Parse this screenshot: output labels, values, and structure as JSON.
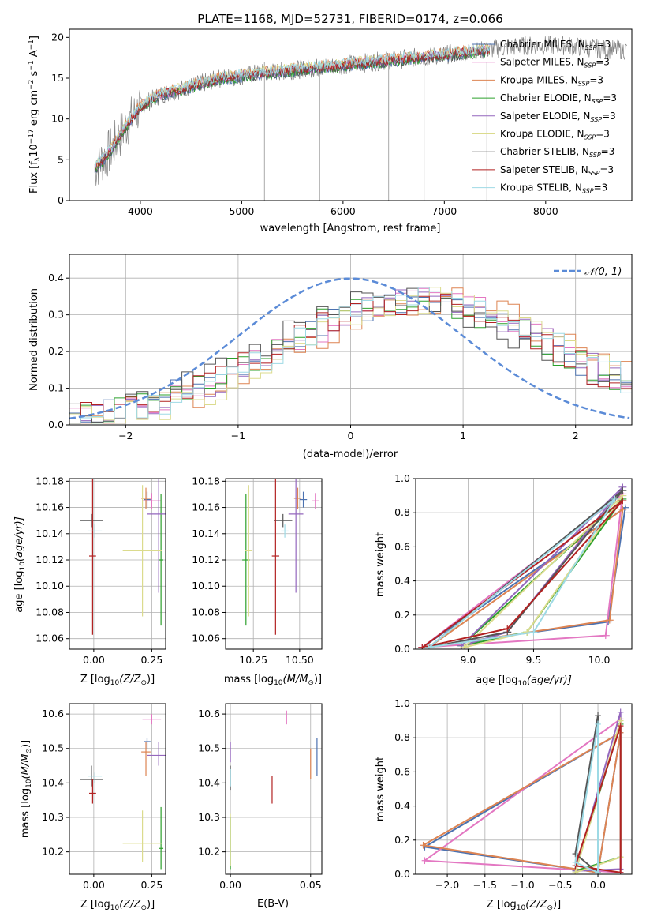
{
  "chart_data": [
    {
      "id": "spectrum",
      "type": "line",
      "title": "PLATE=1168, MJD=52731, FIBERID=0174, z=0.066",
      "xlabel": "wavelength [Angstrom, rest frame]",
      "ylabel": "Flux [f",
      "ylabel_sub": "λ",
      "ylabel_rest": "10",
      "ylabel_exp": "−17",
      "ylabel_units": " erg cm",
      "ylabel_exp2": "−2",
      "ylabel_s": " s",
      "ylabel_exp3": "−1",
      "ylabel_end": " A",
      "ylabel_exp4": "−1",
      "ylabel_close": "]",
      "xlim": [
        3300,
        8850
      ],
      "ylim": [
        0,
        21
      ],
      "xticks": [
        "4000",
        "5000",
        "6000",
        "7000",
        "8000"
      ],
      "yticks": [
        "0",
        "5",
        "10",
        "15",
        "20"
      ],
      "legend": [
        {
          "name": "Chabrier MILES",
          "color": "#4c72b0"
        },
        {
          "name": "Salpeter MILES",
          "color": "#e377c2"
        },
        {
          "name": "Kroupa MILES",
          "color": "#dd8452"
        },
        {
          "name": "Chabrier ELODIE",
          "color": "#2ca02c"
        },
        {
          "name": "Salpeter ELODIE",
          "color": "#9467bd"
        },
        {
          "name": "Kroupa ELODIE",
          "color": "#dbdb8d"
        },
        {
          "name": "Chabrier STELIB",
          "color": "#555555"
        },
        {
          "name": "Salpeter STELIB",
          "color": "#b22222"
        },
        {
          "name": "Kroupa STELIB",
          "color": "#9edae5"
        }
      ],
      "legend_suffix": ", N",
      "legend_sub": "SSP",
      "legend_value": "=3",
      "continuum": [
        [
          3550,
          4
        ],
        [
          3700,
          6
        ],
        [
          3850,
          9
        ],
        [
          4000,
          11.5
        ],
        [
          4200,
          13
        ],
        [
          4500,
          14
        ],
        [
          4800,
          15
        ],
        [
          5100,
          15.5
        ],
        [
          5500,
          16
        ],
        [
          5900,
          16.5
        ],
        [
          6300,
          17
        ],
        [
          6700,
          17.5
        ],
        [
          7100,
          18
        ],
        [
          7450,
          18.5
        ]
      ],
      "data_extension": [
        [
          7450,
          18.5
        ],
        [
          7800,
          19
        ],
        [
          8200,
          19
        ],
        [
          8600,
          18.5
        ],
        [
          8800,
          18.5
        ]
      ]
    },
    {
      "id": "residuals",
      "type": "histogram",
      "xlabel": "(data-model)/error",
      "ylabel": "Normed distribution",
      "xlim": [
        -2.5,
        2.5
      ],
      "ylim": [
        0,
        0.465
      ],
      "xticks": [
        "−2",
        "−1",
        "0",
        "1",
        "2"
      ],
      "yticks": [
        "0.0",
        "0.1",
        "0.2",
        "0.3",
        "0.4"
      ],
      "legend_label": "𝒩(0, 1)",
      "normal_color": "#5b8bd7",
      "bin_width": 0.1
    },
    {
      "id": "age_vs_Z",
      "type": "scatter",
      "xlabel": "Z [log",
      "xlabel_sub": "10",
      "xlabel_tail": "(Z/Z",
      "xlabel_sun": "⊙",
      "xlabel_close": ")]",
      "ylabel": "age  [log",
      "ylabel_sub": "10",
      "ylabel_tail": "(age/yr)]",
      "xlim": [
        -0.105,
        0.31
      ],
      "ylim": [
        10.052,
        10.182
      ],
      "xticks": [
        "0.00",
        "0.25"
      ],
      "yticks": [
        "10.06",
        "10.08",
        "10.10",
        "10.12",
        "10.14",
        "10.16",
        "10.18"
      ]
    },
    {
      "id": "age_vs_mass",
      "type": "scatter",
      "xlabel": "mass [log",
      "xlabel_sub": "10",
      "xlabel_tail": "(M/M",
      "xlabel_sun": "⊙",
      "xlabel_close": ")]",
      "xlim": [
        10.1,
        10.62
      ],
      "ylim": [
        10.052,
        10.182
      ],
      "xticks": [
        "10.25",
        "10.50"
      ],
      "yticks": [
        "10.06",
        "10.08",
        "10.10",
        "10.12",
        "10.14",
        "10.16",
        "10.18"
      ]
    },
    {
      "id": "weight_vs_age",
      "type": "line",
      "xlabel": "age  [log",
      "xlabel_sub": "10",
      "xlabel_tail": "(age/yr)]",
      "ylabel": "mass weight",
      "xlim": [
        8.6,
        10.25
      ],
      "ylim": [
        0,
        1
      ],
      "xticks": [
        "9.0",
        "9.5",
        "10.0"
      ],
      "yticks": [
        "0.0",
        "0.2",
        "0.4",
        "0.6",
        "0.8",
        "1.0"
      ]
    },
    {
      "id": "mass_vs_Z",
      "type": "scatter",
      "xlabel": "Z [log",
      "xlabel_sub": "10",
      "xlabel_tail": "(Z/Z",
      "xlabel_sun": "⊙",
      "xlabel_close": ")]",
      "ylabel": "mass [log",
      "ylabel_sub": "10",
      "ylabel_tail": "(M/M",
      "ylabel_sun": "⊙",
      "ylabel_close": ")]",
      "xlim": [
        -0.105,
        0.31
      ],
      "ylim": [
        10.135,
        10.63
      ],
      "xticks": [
        "0.00",
        "0.25"
      ],
      "yticks": [
        "10.2",
        "10.3",
        "10.4",
        "10.5",
        "10.6"
      ]
    },
    {
      "id": "mass_vs_EBV",
      "type": "scatter",
      "xlabel": "E(B-V)",
      "xlim": [
        -0.003,
        0.057
      ],
      "ylim": [
        10.135,
        10.63
      ],
      "xticks": [
        "0.00",
        "0.05"
      ],
      "yticks": [
        "10.2",
        "10.3",
        "10.4",
        "10.5",
        "10.6"
      ]
    },
    {
      "id": "weight_vs_Z",
      "type": "line",
      "xlabel": "Z [log",
      "xlabel_sub": "10",
      "xlabel_tail": "(Z/Z",
      "xlabel_sun": "⊙",
      "xlabel_close": ")]",
      "ylabel": "mass weight",
      "xlim": [
        -2.42,
        0.45
      ],
      "ylim": [
        0,
        1
      ],
      "xticks": [
        "−2.0",
        "−1.5",
        "−1.0",
        "−0.5",
        "0.0"
      ],
      "yticks": [
        "0.0",
        "0.2",
        "0.4",
        "0.6",
        "0.8",
        "1.0"
      ]
    }
  ],
  "models": [
    {
      "name": "Chabrier MILES",
      "color": "#4c72b0",
      "Z": 0.23,
      "Zerr": 0.015,
      "age": 10.166,
      "ageerr": 0.006,
      "mass": 10.52,
      "masserr": 0.02,
      "mlo": 10.5,
      "mhi": 10.53,
      "ebv": 0.054,
      "ebvlo": 10.42,
      "ebvhi": 10.53,
      "wages": [
        8.65,
        10.07,
        10.2
      ],
      "wvals": [
        0.01,
        0.16,
        0.83
      ],
      "wZ": [
        -2.3,
        0.0,
        0.3
      ],
      "wZvals": [
        0.16,
        0.01,
        0.83
      ]
    },
    {
      "name": "Salpeter MILES",
      "color": "#e377c2",
      "Z": 0.25,
      "Zerr": 0.04,
      "age": 10.165,
      "ageerr": 0.006,
      "mass": 10.585,
      "masserr": 0.02,
      "mlo": 10.57,
      "mhi": 10.6,
      "ebv": 0.035,
      "ebvlo": 10.57,
      "ebvhi": 10.61,
      "wages": [
        8.65,
        10.05,
        10.18
      ],
      "wvals": [
        0.01,
        0.08,
        0.91
      ],
      "wZ": [
        -2.3,
        0.3,
        0.3
      ],
      "wZvals": [
        0.08,
        0.91,
        0.01
      ]
    },
    {
      "name": "Kroupa MILES",
      "color": "#dd8452",
      "Z": 0.225,
      "Zerr": 0.02,
      "age": 10.167,
      "ageerr": 0.008,
      "mass": 10.49,
      "masserr": 0.02,
      "mlo": 10.42,
      "mhi": 10.52,
      "ebv": 0.05,
      "ebvlo": 10.41,
      "ebvhi": 10.5,
      "wages": [
        8.7,
        10.08,
        10.18
      ],
      "wvals": [
        0.01,
        0.17,
        0.82
      ],
      "wZ": [
        -2.32,
        0.0,
        0.3
      ],
      "wZvals": [
        0.17,
        0.01,
        0.83
      ]
    },
    {
      "name": "Chabrier ELODIE",
      "color": "#2ca02c",
      "Z": 0.29,
      "Zerr": 0.01,
      "age": 10.12,
      "ageerr": 0.05,
      "mass": 10.21,
      "masserr": 0.02,
      "mlo": 10.15,
      "mhi": 10.33,
      "ebv": 0.0,
      "ebvlo": 10.15,
      "ebvhi": 10.3,
      "wages": [
        8.95,
        9.45,
        10.18
      ],
      "wvals": [
        0.02,
        0.1,
        0.88
      ],
      "wZ": [
        -0.3,
        0.3,
        0.3
      ],
      "wZvals": [
        0.02,
        0.1,
        0.88
      ]
    },
    {
      "name": "Salpeter ELODIE",
      "color": "#9467bd",
      "Z": 0.28,
      "Zerr": 0.05,
      "age": 10.155,
      "ageerr": 0.06,
      "mass": 10.48,
      "masserr": 0.04,
      "mlo": 10.45,
      "mhi": 10.52,
      "ebv": 0.0,
      "ebvlo": 10.46,
      "ebvhi": 10.52,
      "wages": [
        8.95,
        9.3,
        10.18
      ],
      "wvals": [
        0.02,
        0.1,
        0.95
      ],
      "wZ": [
        -0.3,
        0.3,
        0.3
      ],
      "wZvals": [
        0.02,
        0.95,
        0.03
      ]
    },
    {
      "name": "Kroupa ELODIE",
      "color": "#dbdb8d",
      "Z": 0.21,
      "Zerr": 0.085,
      "age": 10.127,
      "ageerr": 0.05,
      "mass": 10.225,
      "masserr": 0.02,
      "mlo": 10.17,
      "mhi": 10.32,
      "ebv": 0.0,
      "ebvlo": 10.16,
      "ebvhi": 10.31,
      "wages": [
        8.97,
        9.45,
        10.18
      ],
      "wvals": [
        0.01,
        0.1,
        0.9
      ],
      "wZ": [
        -0.3,
        0.3,
        0.3
      ],
      "wZvals": [
        0.01,
        0.1,
        0.9
      ]
    },
    {
      "name": "Chabrier STELIB",
      "color": "#555555",
      "Z": -0.01,
      "Zerr": 0.05,
      "age": 10.15,
      "ageerr": 0.005,
      "mass": 10.41,
      "masserr": 0.05,
      "mlo": 10.39,
      "mhi": 10.45,
      "ebv": 0.0,
      "ebvlo": 10.38,
      "ebvhi": 10.45,
      "wages": [
        8.7,
        9.3,
        10.18
      ],
      "wvals": [
        0.01,
        0.1,
        0.93
      ],
      "wZ": [
        -0.3,
        0.0,
        0.0
      ],
      "wZvals": [
        0.12,
        0.93,
        0.01
      ]
    },
    {
      "name": "Salpeter STELIB",
      "color": "#b22222",
      "Z": -0.005,
      "Zerr": 0.015,
      "age": 10.123,
      "ageerr": 0.06,
      "mass": 10.37,
      "masserr": 0.02,
      "mlo": 10.34,
      "mhi": 10.41,
      "ebv": 0.026,
      "ebvlo": 10.34,
      "ebvhi": 10.42,
      "wages": [
        8.65,
        9.3,
        10.18
      ],
      "wvals": [
        0.01,
        0.12,
        0.87
      ],
      "wZ": [
        -0.3,
        0.3,
        0.3
      ],
      "wZvals": [
        0.05,
        0.87,
        0.01
      ]
    },
    {
      "name": "Kroupa STELIB",
      "color": "#9edae5",
      "Z": 0.005,
      "Zerr": 0.03,
      "age": 10.142,
      "ageerr": 0.005,
      "mass": 10.42,
      "masserr": 0.02,
      "mlo": 10.4,
      "mhi": 10.43,
      "ebv": 0.0,
      "ebvlo": 10.39,
      "ebvhi": 10.44,
      "wages": [
        8.7,
        9.5,
        10.12
      ],
      "wvals": [
        0.01,
        0.1,
        0.88
      ],
      "wZ": [
        -0.3,
        0.0,
        0.0
      ],
      "wZvals": [
        0.07,
        0.88,
        0.01
      ]
    }
  ]
}
